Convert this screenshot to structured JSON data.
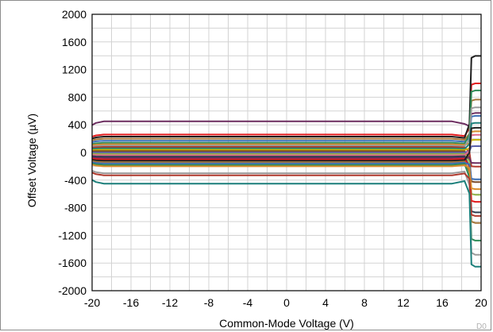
{
  "chart_data": {
    "type": "line",
    "title": "",
    "xlabel": "Common-Mode Voltage (V)",
    "ylabel": "Offset Voltage (µV)",
    "xlim": [
      -20,
      20
    ],
    "ylim": [
      -2000,
      2000
    ],
    "xticks": [
      -20,
      -16,
      -12,
      -8,
      -4,
      0,
      4,
      8,
      12,
      16,
      20
    ],
    "yticks": [
      2000,
      1600,
      1200,
      800,
      400,
      0,
      -400,
      -800,
      -1200,
      -1600,
      -2000
    ],
    "grid": true,
    "legend": "none",
    "figure_code": "D0",
    "series_colors": [
      "#6b2c5f",
      "#e31a1c",
      "#1f1f1f",
      "#a6763a",
      "#3b6fb6",
      "#2e8b57",
      "#d98c2b",
      "#9b9b9b",
      "#b03a2e",
      "#1b7f7a",
      "#c8b400",
      "#7a4a2a",
      "#5a5fa8",
      "#8fb34a",
      "#e06a8a",
      "#2c3e50"
    ],
    "series": [
      {
        "flat": 450,
        "end": 560
      },
      {
        "flat": 260,
        "end": 980
      },
      {
        "flat": 230,
        "end": 1370
      },
      {
        "flat": 200,
        "end": 750
      },
      {
        "flat": 170,
        "end": 520
      },
      {
        "flat": 140,
        "end": 880
      },
      {
        "flat": 120,
        "end": 300
      },
      {
        "flat": 100,
        "end": 640
      },
      {
        "flat": 80,
        "end": -200
      },
      {
        "flat": 60,
        "end": 420
      },
      {
        "flat": 40,
        "end": 180
      },
      {
        "flat": 20,
        "end": -420
      },
      {
        "flat": 0,
        "end": 90
      },
      {
        "flat": -20,
        "end": -600
      },
      {
        "flat": -40,
        "end": 250
      },
      {
        "flat": -60,
        "end": -850
      },
      {
        "flat": -80,
        "end": -150
      },
      {
        "flat": -100,
        "end": -700
      },
      {
        "flat": -120,
        "end": 350
      },
      {
        "flat": -140,
        "end": -1000
      },
      {
        "flat": -160,
        "end": -380
      },
      {
        "flat": -180,
        "end": -1250
      },
      {
        "flat": -200,
        "end": -520
      },
      {
        "flat": -300,
        "end": -1450
      },
      {
        "flat": -330,
        "end": -900
      },
      {
        "flat": -450,
        "end": -1620
      }
    ]
  }
}
